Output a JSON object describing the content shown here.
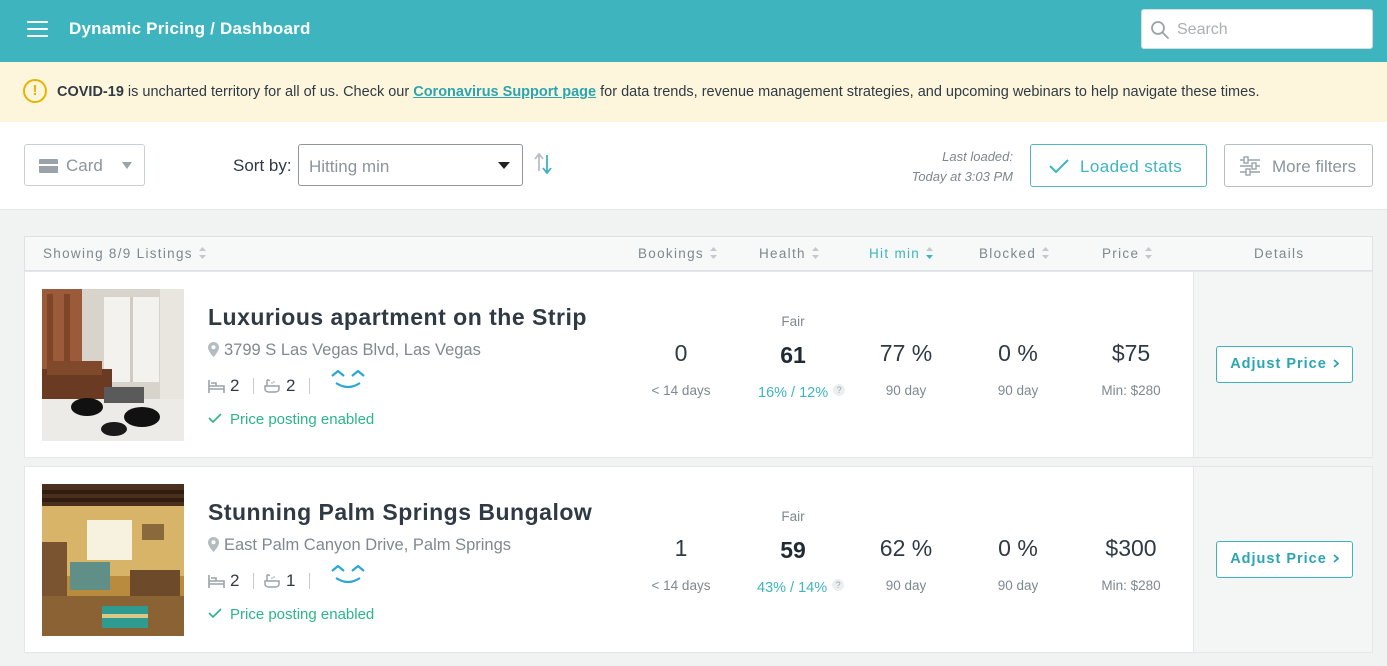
{
  "header": {
    "breadcrumb": "Dynamic Pricing / Dashboard",
    "search_placeholder": "Search"
  },
  "banner": {
    "bold_lead": "COVID-19",
    "text_before_link": " is uncharted territory for all of us. Check our ",
    "link_text": "Coronavirus Support page",
    "text_after_link": " for data trends, revenue management strategies, and upcoming webinars to help navigate these times."
  },
  "toolbar": {
    "view_label": "Card",
    "sort_label": "Sort by:",
    "sort_value": "Hitting min",
    "last_loaded_label": "Last loaded:",
    "last_loaded_value": "Today at 3:03 PM",
    "loaded_stats_label": "Loaded stats",
    "more_filters_label": "More filters"
  },
  "table": {
    "columns": {
      "showing": "Showing 8/9 Listings",
      "bookings": "Bookings",
      "health": "Health",
      "hit_min": "Hit min",
      "blocked": "Blocked",
      "price": "Price",
      "details": "Details"
    }
  },
  "listings": [
    {
      "title": "Luxurious apartment on the Strip",
      "address": "3799 S Las Vegas Blvd, Las Vegas",
      "beds": "2",
      "baths": "2",
      "posting": "Price posting enabled",
      "bookings": "0",
      "bookings_sub": "< 14 days",
      "health_label": "Fair",
      "health_score": "61",
      "health_occ": "16% / 12%",
      "hit_min": "77 %",
      "hit_min_sub": "90 day",
      "blocked": "0 %",
      "blocked_sub": "90 day",
      "price": "$75",
      "min_price": "Min: $280",
      "adjust_label": "Adjust Price"
    },
    {
      "title": "Stunning Palm Springs Bungalow",
      "address": "East Palm Canyon Drive, Palm Springs",
      "beds": "2",
      "baths": "1",
      "posting": "Price posting enabled",
      "bookings": "1",
      "bookings_sub": "< 14 days",
      "health_label": "Fair",
      "health_score": "59",
      "health_occ": "43% / 14%",
      "hit_min": "62 %",
      "hit_min_sub": "90 day",
      "blocked": "0 %",
      "blocked_sub": "90 day",
      "price": "$300",
      "min_price": "Min: $280",
      "adjust_label": "Adjust Price"
    }
  ],
  "icons": {
    "menu": "hamburger-icon",
    "search": "search-icon",
    "warning": "warning-icon",
    "question": "?"
  },
  "colors": {
    "brand_teal": "#3eb4bf",
    "banner_bg": "#fdf6dc",
    "success_green": "#2cb58a",
    "warning_yellow": "#e8b300"
  }
}
